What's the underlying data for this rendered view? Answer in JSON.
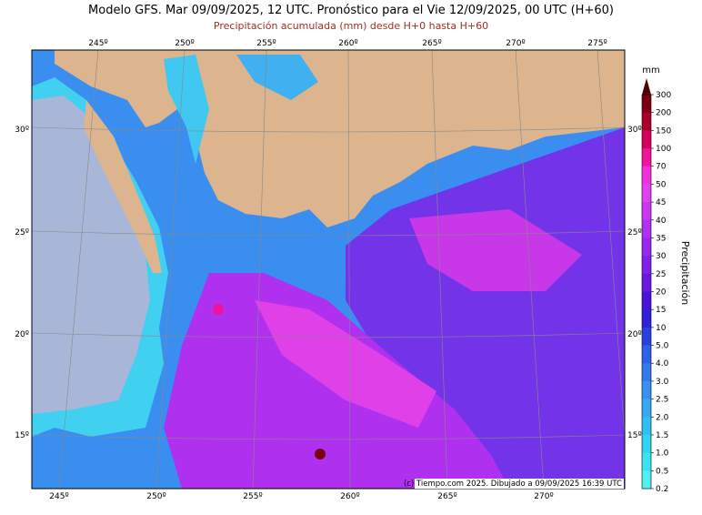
{
  "header": {
    "title": "Modelo GFS. Mar 09/09/2025, 12 UTC. Pronóstico para el Vie 12/09/2025, 00 UTC (H+60)",
    "subtitle": "Precipitación acumulada (mm) desde H+0 hasta H+60"
  },
  "map": {
    "lon_labels_top": [
      "245º",
      "250º",
      "255º",
      "260º",
      "265º",
      "270º",
      "275º"
    ],
    "lon_labels_bottom": [
      "245º",
      "250º",
      "255º",
      "260º",
      "265º",
      "270º"
    ],
    "lat_labels_left": [
      "30º",
      "25º",
      "20º",
      "15º"
    ],
    "lat_labels_right": [
      "30º",
      "25º",
      "20º",
      "15º"
    ],
    "credit": "(c) Tiempo.com 2025. Dibujado a 09/09/2025 16:39 UTC"
  },
  "colorbar": {
    "unit": "mm",
    "title": "Precipitación",
    "labels": [
      "300",
      "200",
      "150",
      "100",
      "70",
      "50",
      "45",
      "40",
      "35",
      "30",
      "25",
      "20",
      "15",
      "10",
      "5.0",
      "4.0",
      "3.0",
      "2.5",
      "2.0",
      "1.5",
      "1.0",
      "0.5",
      "0.2"
    ],
    "colors": [
      "#7a0010",
      "#a8002a",
      "#d4005a",
      "#f0149a",
      "#f030d8",
      "#e040f0",
      "#c838f0",
      "#b030f0",
      "#9828f0",
      "#8020e8",
      "#6818e0",
      "#4a14d8",
      "#3020d8",
      "#2840e0",
      "#3060e8",
      "#3478ec",
      "#3890f0",
      "#38a8f0",
      "#30c0f0",
      "#30d4f0",
      "#38e4f0",
      "#50f0f0"
    ],
    "top_color": "#500008"
  }
}
